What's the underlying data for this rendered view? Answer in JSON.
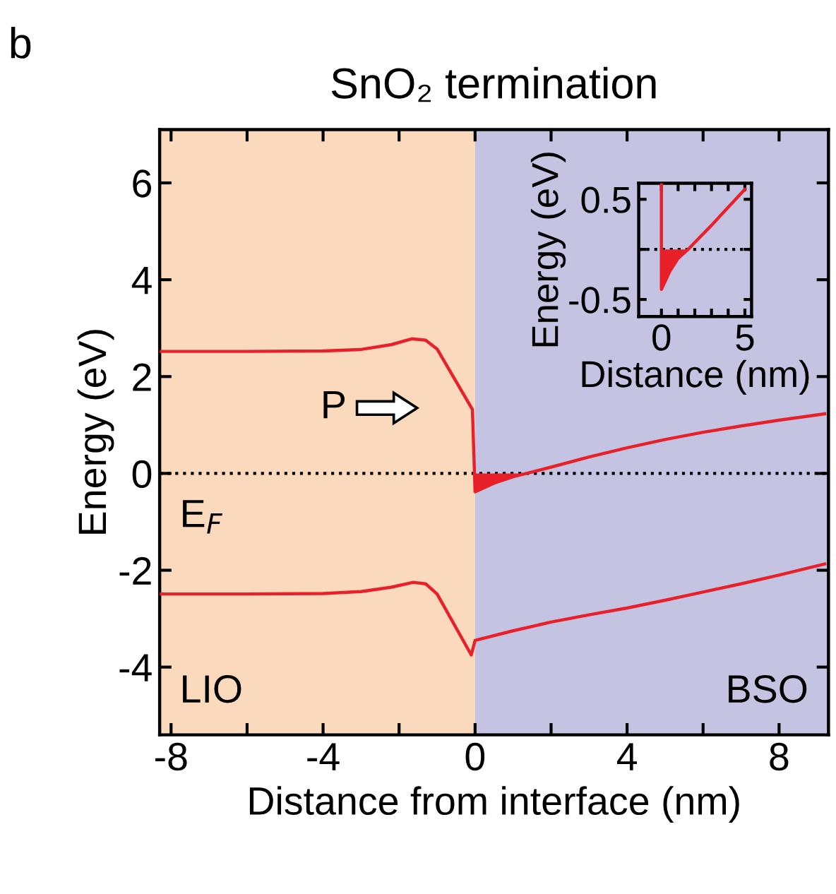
{
  "chart_data": [
    {
      "type": "line",
      "title": "SnO₂ termination",
      "xlabel": "Distance from interface (nm)",
      "ylabel": "Energy (eV)",
      "xlim": [
        -8.3,
        9.3
      ],
      "ylim": [
        -5.4,
        7.1
      ],
      "xticks": [
        {
          "value": -8,
          "label": "-8"
        },
        {
          "value": -6,
          "label": null
        },
        {
          "value": -4,
          "label": "-4"
        },
        {
          "value": -2,
          "label": null
        },
        0,
        {
          "value": 2,
          "label": null
        },
        4,
        {
          "value": 6,
          "label": null
        },
        8
      ],
      "yticks": [
        {
          "value": -4,
          "label": "-4"
        },
        {
          "value": -2,
          "label": "-2"
        },
        0,
        2,
        4,
        6
      ],
      "series": [
        {
          "color": "#e8202a",
          "x": [
            -8.3,
            -6,
            -4,
            -3,
            -2.2,
            -1.67,
            -1.3,
            -1.0,
            -0.07,
            0,
            0.5,
            1,
            1.5,
            2,
            3,
            4,
            5,
            6,
            7,
            8,
            9.2
          ],
          "values": [
            2.52,
            2.52,
            2.53,
            2.56,
            2.66,
            2.78,
            2.75,
            2.57,
            1.32,
            -0.38,
            -0.2,
            -0.07,
            0.03,
            0.13,
            0.34,
            0.53,
            0.7,
            0.85,
            0.98,
            1.1,
            1.23
          ]
        },
        {
          "type": "area",
          "color": "#e8202a",
          "x": [
            0,
            0.5,
            1,
            1.34
          ],
          "values": [
            -0.38,
            -0.2,
            -0.07,
            0
          ]
        },
        {
          "color": "#e8202a",
          "x": [
            -8.3,
            -6,
            -4,
            -3,
            -2.2,
            -1.63,
            -1.3,
            -1.0,
            -0.1,
            0,
            1,
            2,
            3,
            4,
            5,
            6,
            7,
            8,
            9.2
          ],
          "values": [
            -2.49,
            -2.49,
            -2.48,
            -2.44,
            -2.35,
            -2.25,
            -2.28,
            -2.49,
            -3.75,
            -3.45,
            -3.25,
            -3.07,
            -2.92,
            -2.78,
            -2.62,
            -2.45,
            -2.28,
            -2.1,
            -1.87
          ]
        }
      ],
      "bands": [
        {
          "axis": "x",
          "from": -8.3,
          "to": 0,
          "label": "LIO",
          "color": "#fbd9bd"
        },
        {
          "axis": "x",
          "from": 0,
          "to": 9.3,
          "label": "BSO",
          "color": "#c5c3e2"
        }
      ],
      "ref_lines": [
        {
          "axis": "y",
          "value": 0,
          "label": "E$_{F}$",
          "color": "#000000",
          "line_style": "dotted"
        }
      ],
      "annotations": [
        "b",
        "P"
      ],
      "grid": false,
      "legend": false
    },
    {
      "type": "line",
      "xlabel": "Distance (nm)",
      "ylabel": "Energy (eV)",
      "xlim": [
        -1.36,
        5.4
      ],
      "ylim": [
        -0.67,
        0.66
      ],
      "xticks": [
        0,
        {
          "value": 1,
          "label": null
        },
        {
          "value": 2,
          "label": null
        },
        {
          "value": 3,
          "label": null
        },
        {
          "value": 4,
          "label": null
        },
        5
      ],
      "yticks": [
        {
          "value": -0.5,
          "label": "-0.5"
        },
        {
          "value": 0,
          "label": null
        },
        0.5
      ],
      "series": [
        {
          "color": "#e8202a",
          "x": [
            0,
            0,
            0.5,
            1,
            1.6,
            2,
            3,
            4,
            5
          ],
          "values": [
            0.66,
            -0.4,
            -0.22,
            -0.09,
            0,
            0.07,
            0.24,
            0.42,
            0.6
          ]
        },
        {
          "type": "area",
          "color": "#e8202a",
          "x": [
            0,
            0.5,
            1,
            1.6
          ],
          "values": [
            -0.4,
            -0.22,
            -0.09,
            0
          ]
        }
      ],
      "ref_lines": [
        {
          "axis": "y",
          "value": 0,
          "color": "#000000",
          "line_style": "dotted"
        }
      ],
      "grid": false,
      "legend": false
    }
  ]
}
